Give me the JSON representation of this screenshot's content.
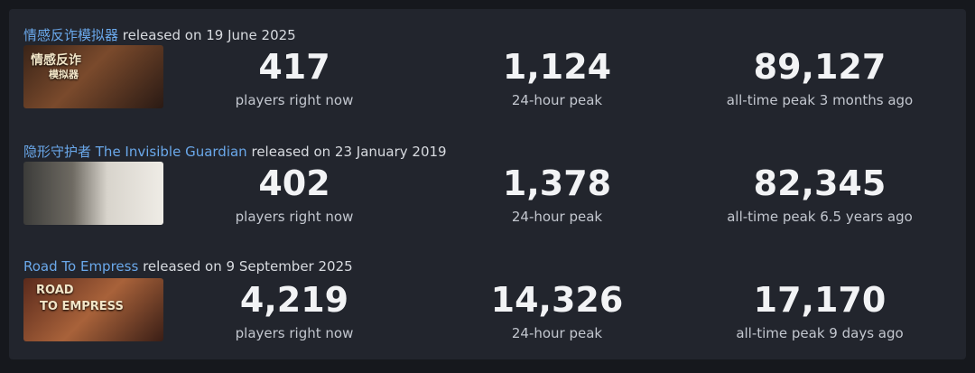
{
  "games": [
    {
      "name": "情感反诈模拟器",
      "released": "released on 19 June 2025",
      "thumb_text": [
        "情感反诈",
        "模拟器"
      ],
      "stats": [
        {
          "value": "417",
          "label": "players right now"
        },
        {
          "value": "1,124",
          "label": "24-hour peak"
        },
        {
          "value": "89,127",
          "label": "all-time peak 3 months ago"
        }
      ]
    },
    {
      "name": "隐形守护者 The Invisible Guardian",
      "released": "released on 23 January 2019",
      "thumb_text": [],
      "stats": [
        {
          "value": "402",
          "label": "players right now"
        },
        {
          "value": "1,378",
          "label": "24-hour peak"
        },
        {
          "value": "82,345",
          "label": "all-time peak 6.5 years ago"
        }
      ]
    },
    {
      "name": "Road To Empress",
      "released": "released on 9 September 2025",
      "thumb_text": [
        "ROAD",
        "TO EMPRESS"
      ],
      "stats": [
        {
          "value": "4,219",
          "label": "players right now"
        },
        {
          "value": "14,326",
          "label": "24-hour peak"
        },
        {
          "value": "17,170",
          "label": "all-time peak 9 days ago"
        }
      ]
    }
  ]
}
